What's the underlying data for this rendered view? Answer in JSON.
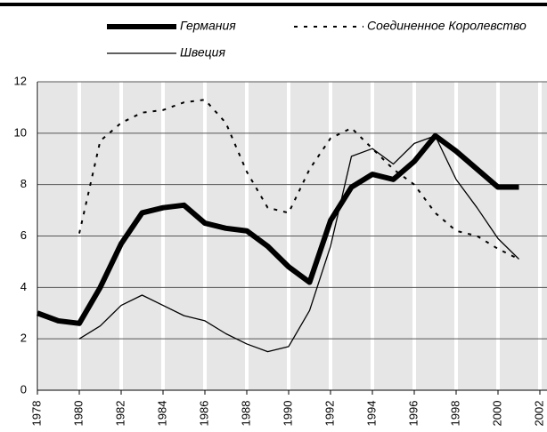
{
  "chart_data": {
    "type": "line",
    "x": [
      1978,
      1979,
      1980,
      1981,
      1982,
      1983,
      1984,
      1985,
      1986,
      1987,
      1988,
      1989,
      1990,
      1991,
      1992,
      1993,
      1994,
      1995,
      1996,
      1997,
      1998,
      1999,
      2000,
      2001
    ],
    "series": [
      {
        "name": "Германия",
        "color": "#000000",
        "style": "solid",
        "width": 6,
        "values": [
          3.0,
          2.7,
          2.6,
          4.0,
          5.7,
          6.9,
          7.1,
          7.2,
          6.5,
          6.3,
          6.2,
          5.6,
          4.8,
          4.2,
          6.6,
          7.9,
          8.4,
          8.2,
          8.9,
          9.9,
          9.3,
          8.6,
          7.9,
          7.9
        ]
      },
      {
        "name": "Соединенное Королевство",
        "color": "#000000",
        "style": "dashed",
        "width": 2,
        "values": [
          null,
          null,
          6.1,
          9.7,
          10.4,
          10.8,
          10.9,
          11.2,
          11.3,
          10.4,
          8.5,
          7.1,
          6.9,
          8.6,
          9.8,
          10.2,
          9.4,
          8.6,
          8.0,
          6.9,
          6.2,
          6.0,
          5.5,
          5.1
        ]
      },
      {
        "name": "Швеция",
        "color": "#000000",
        "style": "solid",
        "width": 1.3,
        "values": [
          null,
          null,
          2.0,
          2.5,
          3.3,
          3.7,
          3.3,
          2.9,
          2.7,
          2.2,
          1.8,
          1.5,
          1.7,
          3.1,
          5.6,
          9.1,
          9.4,
          8.8,
          9.6,
          9.9,
          8.2,
          7.1,
          5.9,
          5.1
        ]
      }
    ],
    "xlim": [
      1978,
      2002
    ],
    "xticks": [
      1978,
      1980,
      1982,
      1984,
      1986,
      1988,
      1990,
      1992,
      1994,
      1996,
      1998,
      2000,
      2002
    ],
    "ylim": [
      0,
      12
    ],
    "yticks": [
      0,
      2,
      4,
      6,
      8,
      10,
      12
    ],
    "grid": true
  }
}
